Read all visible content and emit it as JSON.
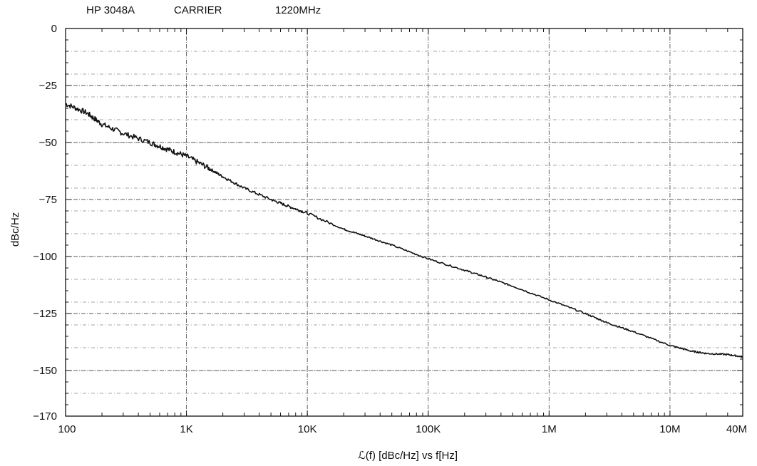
{
  "header": {
    "instrument": "HP 3048A",
    "carrier_label": "CARRIER",
    "carrier_frequency": "1220MHz"
  },
  "chart_data": {
    "type": "line",
    "title": "",
    "xlabel": "ℒ(f) [dBc/Hz] vs f[Hz]",
    "ylabel": "dBc/Hz",
    "x_scale": "log",
    "xlim": [
      100,
      40000000
    ],
    "ylim": [
      -170,
      0
    ],
    "x_ticks": [
      {
        "value": 100,
        "label": "100"
      },
      {
        "value": 1000,
        "label": "1K"
      },
      {
        "value": 10000,
        "label": "10K"
      },
      {
        "value": 100000,
        "label": "100K"
      },
      {
        "value": 1000000,
        "label": "1M"
      },
      {
        "value": 10000000,
        "label": "10M"
      },
      {
        "value": 40000000,
        "label": "40M"
      }
    ],
    "y_ticks": [
      {
        "value": 0,
        "label": "0"
      },
      {
        "value": -25,
        "label": "−25"
      },
      {
        "value": -50,
        "label": "−50"
      },
      {
        "value": -75,
        "label": "−75"
      },
      {
        "value": -100,
        "label": "−100"
      },
      {
        "value": -125,
        "label": "−125"
      },
      {
        "value": -150,
        "label": "−150"
      },
      {
        "value": -170,
        "label": "−170"
      }
    ],
    "grid": true,
    "colors": {
      "line": "#111111",
      "grid": "#555555",
      "frame": "#111111"
    },
    "series": [
      {
        "x": [
          100,
          150,
          200,
          300,
          500,
          700,
          1000,
          1500,
          2000,
          3000,
          5000,
          7000,
          10000,
          20000,
          30000,
          50000,
          100000,
          200000,
          300000,
          500000,
          1000000,
          2000000,
          3000000,
          5000000,
          10000000,
          15000000,
          20000000,
          30000000,
          40000000
        ],
        "y": [
          -33,
          -37,
          -42,
          -46,
          -50,
          -53,
          -56,
          -61,
          -65,
          -70,
          -75,
          -78,
          -81,
          -88,
          -91,
          -95,
          -101,
          -106,
          -109,
          -113,
          -119,
          -125,
          -129,
          -133,
          -139,
          -141.5,
          -142.5,
          -143,
          -144
        ]
      }
    ]
  }
}
